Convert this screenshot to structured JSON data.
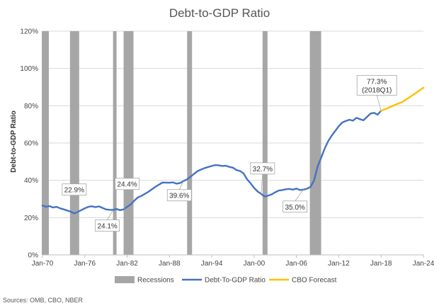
{
  "chart_data": {
    "type": "line",
    "title": "Debt-to-GDP Ratio",
    "ylabel": "Debt-to-GDP Ratio",
    "xlabel": "",
    "x_ticks": [
      "Jan-70",
      "Jan-76",
      "Jan-82",
      "Jan-88",
      "Jan-94",
      "Jan-00",
      "Jan-06",
      "Jan-12",
      "Jan-18",
      "Jan-24"
    ],
    "x_range": [
      1970.0,
      2024.0
    ],
    "y_ticks": [
      "0%",
      "20%",
      "40%",
      "60%",
      "80%",
      "100%",
      "120%"
    ],
    "ylim": [
      0,
      120
    ],
    "grid": "horizontal",
    "legend_position": "bottom",
    "recessions": [
      [
        1969.9,
        1970.9
      ],
      [
        1973.9,
        1975.2
      ],
      [
        1980.0,
        1980.5
      ],
      [
        1981.5,
        1982.9
      ],
      [
        1990.5,
        1991.2
      ],
      [
        2001.2,
        2001.9
      ],
      [
        2007.9,
        2009.5
      ]
    ],
    "series": [
      {
        "name": "Debt-To-GDP Ratio",
        "color": "#4472C4",
        "points": [
          [
            1970.0,
            26.5
          ],
          [
            1970.5,
            25.8
          ],
          [
            1971.0,
            26.2
          ],
          [
            1971.5,
            25.4
          ],
          [
            1972.0,
            25.8
          ],
          [
            1972.5,
            25.0
          ],
          [
            1973.0,
            24.4
          ],
          [
            1973.5,
            23.8
          ],
          [
            1974.0,
            23.2
          ],
          [
            1974.5,
            22.3
          ],
          [
            1974.9,
            22.9
          ],
          [
            1975.5,
            24.0
          ],
          [
            1976.0,
            25.0
          ],
          [
            1976.5,
            25.8
          ],
          [
            1977.0,
            26.1
          ],
          [
            1977.5,
            25.6
          ],
          [
            1978.0,
            26.0
          ],
          [
            1978.5,
            25.2
          ],
          [
            1979.0,
            24.4
          ],
          [
            1979.5,
            24.2
          ],
          [
            1980.0,
            24.1
          ],
          [
            1980.5,
            24.6
          ],
          [
            1981.0,
            24.0
          ],
          [
            1981.5,
            24.4
          ],
          [
            1982.0,
            25.8
          ],
          [
            1982.5,
            27.0
          ],
          [
            1983.0,
            29.0
          ],
          [
            1983.5,
            30.8
          ],
          [
            1984.0,
            31.6
          ],
          [
            1985.0,
            33.8
          ],
          [
            1986.0,
            36.5
          ],
          [
            1987.0,
            38.8
          ],
          [
            1988.0,
            38.7
          ],
          [
            1988.5,
            38.9
          ],
          [
            1989.0,
            38.2
          ],
          [
            1989.5,
            38.6
          ],
          [
            1990.0,
            39.6
          ],
          [
            1990.5,
            40.5
          ],
          [
            1991.0,
            42.0
          ],
          [
            1992.0,
            45.0
          ],
          [
            1993.0,
            46.6
          ],
          [
            1994.0,
            47.7
          ],
          [
            1994.5,
            48.2
          ],
          [
            1995.0,
            48.0
          ],
          [
            1995.5,
            47.7
          ],
          [
            1996.0,
            47.8
          ],
          [
            1996.5,
            47.2
          ],
          [
            1997.0,
            46.8
          ],
          [
            1997.5,
            45.5
          ],
          [
            1998.0,
            45.0
          ],
          [
            1998.5,
            43.8
          ],
          [
            1999.0,
            40.6
          ],
          [
            1999.5,
            38.4
          ],
          [
            2000.0,
            35.9
          ],
          [
            2000.5,
            34.0
          ],
          [
            2001.0,
            32.7
          ],
          [
            2001.5,
            31.3
          ],
          [
            2002.0,
            31.8
          ],
          [
            2002.5,
            32.5
          ],
          [
            2003.0,
            33.6
          ],
          [
            2003.5,
            34.5
          ],
          [
            2004.0,
            34.8
          ],
          [
            2004.5,
            35.2
          ],
          [
            2005.0,
            35.4
          ],
          [
            2005.5,
            35.0
          ],
          [
            2006.0,
            35.6
          ],
          [
            2006.5,
            34.8
          ],
          [
            2007.0,
            35.0
          ],
          [
            2007.5,
            35.5
          ],
          [
            2008.0,
            36.5
          ],
          [
            2008.5,
            40.0
          ],
          [
            2009.0,
            47.5
          ],
          [
            2009.5,
            52.0
          ],
          [
            2010.0,
            57.0
          ],
          [
            2010.5,
            61.0
          ],
          [
            2011.0,
            64.0
          ],
          [
            2011.5,
            66.5
          ],
          [
            2012.0,
            69.0
          ],
          [
            2012.5,
            71.0
          ],
          [
            2013.0,
            71.8
          ],
          [
            2013.5,
            72.5
          ],
          [
            2014.0,
            72.0
          ],
          [
            2014.5,
            73.5
          ],
          [
            2015.0,
            72.8
          ],
          [
            2015.5,
            72.2
          ],
          [
            2016.0,
            74.0
          ],
          [
            2016.5,
            75.8
          ],
          [
            2017.0,
            76.2
          ],
          [
            2017.5,
            75.2
          ],
          [
            2018.0,
            77.3
          ]
        ]
      },
      {
        "name": "CBO Forecast",
        "color": "#FFC000",
        "points": [
          [
            2018.0,
            77.3
          ],
          [
            2019.0,
            78.8
          ],
          [
            2020.0,
            80.5
          ],
          [
            2021.0,
            82.0
          ],
          [
            2022.0,
            84.5
          ],
          [
            2023.0,
            87.0
          ],
          [
            2024.0,
            89.7
          ]
        ]
      }
    ],
    "annotations": [
      {
        "label": "22.9%",
        "x": 1974.9,
        "y": 22.9
      },
      {
        "label": "24.1%",
        "x": 1980.0,
        "y": 24.1
      },
      {
        "label": "24.4%",
        "x": 1981.6,
        "y": 24.4
      },
      {
        "label": "39.6%",
        "x": 1990.0,
        "y": 39.6
      },
      {
        "label": "32.7%",
        "x": 2001.0,
        "y": 32.7
      },
      {
        "label": "35.0%",
        "x": 2007.0,
        "y": 35.0
      },
      {
        "label": "77.3%",
        "label2": "(2018Q1)",
        "x": 2018.0,
        "y": 77.3
      }
    ],
    "legend": [
      {
        "label": "Recessions",
        "kind": "box",
        "color": "#A6A6A6"
      },
      {
        "label": "Debt-To-GDP Ratio",
        "kind": "line",
        "color": "#4472C4"
      },
      {
        "label": "CBO Forecast",
        "kind": "line",
        "color": "#FFC000"
      }
    ],
    "source": "Sources: OMB, CBO, NBER"
  }
}
